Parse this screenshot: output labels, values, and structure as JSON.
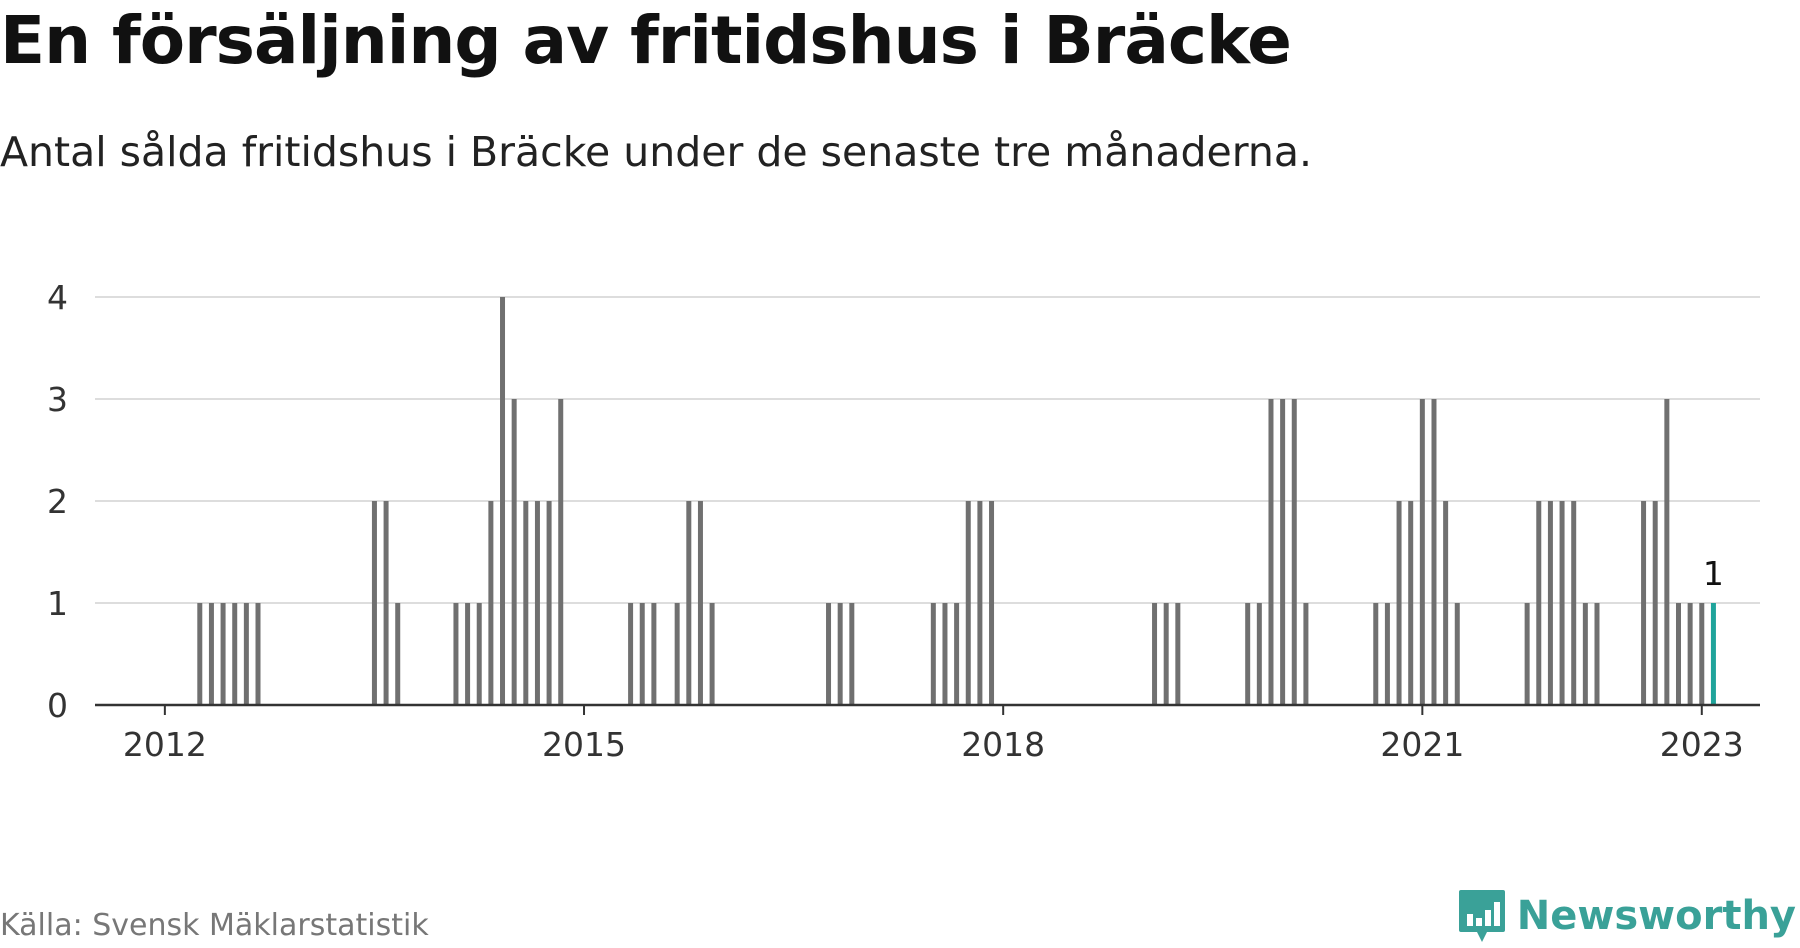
{
  "title": "En försäljning av fritidshus i Bräcke",
  "subtitle": "Antal sålda fritidshus i Bräcke under de senaste tre månaderna.",
  "source": "Källa: Svensk Mäklarstatistik",
  "brand": "Newsworthy",
  "colors": {
    "bar": "#707070",
    "highlight": "#1fa49b",
    "grid": "#dddddd",
    "axis": "#333333",
    "brand": "#3aa198"
  },
  "chart_data": {
    "type": "bar",
    "ylim": [
      0,
      4
    ],
    "y_ticks": [
      "0",
      "1",
      "2",
      "3",
      "4"
    ],
    "x_ticks": [
      {
        "label": "2012",
        "date": "2012-01"
      },
      {
        "label": "2015",
        "date": "2015-01"
      },
      {
        "label": "2018",
        "date": "2018-01"
      },
      {
        "label": "2021",
        "date": "2021-01"
      },
      {
        "label": "2023",
        "date": "2023-01"
      }
    ],
    "grid": true,
    "x_range": [
      "2011-07",
      "2023-06"
    ],
    "series": [
      {
        "points": [
          {
            "x": "2012-04",
            "y": 1
          },
          {
            "x": "2012-05",
            "y": 1
          },
          {
            "x": "2012-06",
            "y": 1
          },
          {
            "x": "2012-07",
            "y": 1
          },
          {
            "x": "2012-08",
            "y": 1
          },
          {
            "x": "2012-09",
            "y": 1
          },
          {
            "x": "2013-07",
            "y": 2
          },
          {
            "x": "2013-08",
            "y": 2
          },
          {
            "x": "2013-09",
            "y": 1
          },
          {
            "x": "2014-02",
            "y": 1
          },
          {
            "x": "2014-03",
            "y": 1
          },
          {
            "x": "2014-04",
            "y": 1
          },
          {
            "x": "2014-05",
            "y": 2
          },
          {
            "x": "2014-06",
            "y": 4
          },
          {
            "x": "2014-07",
            "y": 3
          },
          {
            "x": "2014-08",
            "y": 2
          },
          {
            "x": "2014-09",
            "y": 2
          },
          {
            "x": "2014-10",
            "y": 2
          },
          {
            "x": "2014-11",
            "y": 3
          },
          {
            "x": "2015-05",
            "y": 1
          },
          {
            "x": "2015-06",
            "y": 1
          },
          {
            "x": "2015-07",
            "y": 1
          },
          {
            "x": "2015-09",
            "y": 1
          },
          {
            "x": "2015-10",
            "y": 2
          },
          {
            "x": "2015-11",
            "y": 2
          },
          {
            "x": "2015-12",
            "y": 1
          },
          {
            "x": "2016-10",
            "y": 1
          },
          {
            "x": "2016-11",
            "y": 1
          },
          {
            "x": "2016-12",
            "y": 1
          },
          {
            "x": "2017-07",
            "y": 1
          },
          {
            "x": "2017-08",
            "y": 1
          },
          {
            "x": "2017-09",
            "y": 1
          },
          {
            "x": "2017-10",
            "y": 2
          },
          {
            "x": "2017-11",
            "y": 2
          },
          {
            "x": "2017-12",
            "y": 2
          },
          {
            "x": "2019-02",
            "y": 1
          },
          {
            "x": "2019-03",
            "y": 1
          },
          {
            "x": "2019-04",
            "y": 1
          },
          {
            "x": "2019-10",
            "y": 1
          },
          {
            "x": "2019-11",
            "y": 1
          },
          {
            "x": "2019-12",
            "y": 3
          },
          {
            "x": "2020-01",
            "y": 3
          },
          {
            "x": "2020-02",
            "y": 3
          },
          {
            "x": "2020-03",
            "y": 1
          },
          {
            "x": "2020-09",
            "y": 1
          },
          {
            "x": "2020-10",
            "y": 1
          },
          {
            "x": "2020-11",
            "y": 2
          },
          {
            "x": "2020-12",
            "y": 2
          },
          {
            "x": "2021-01",
            "y": 3
          },
          {
            "x": "2021-02",
            "y": 3
          },
          {
            "x": "2021-03",
            "y": 2
          },
          {
            "x": "2021-04",
            "y": 1
          },
          {
            "x": "2021-10",
            "y": 1
          },
          {
            "x": "2021-11",
            "y": 2
          },
          {
            "x": "2021-12",
            "y": 2
          },
          {
            "x": "2022-01",
            "y": 2
          },
          {
            "x": "2022-02",
            "y": 2
          },
          {
            "x": "2022-03",
            "y": 1
          },
          {
            "x": "2022-04",
            "y": 1
          },
          {
            "x": "2022-08",
            "y": 2
          },
          {
            "x": "2022-09",
            "y": 2
          },
          {
            "x": "2022-10",
            "y": 3
          },
          {
            "x": "2022-11",
            "y": 1
          },
          {
            "x": "2022-12",
            "y": 1
          },
          {
            "x": "2023-01",
            "y": 1
          }
        ]
      }
    ],
    "highlight": {
      "x": "2023-02",
      "y": 1,
      "label": "1"
    }
  }
}
